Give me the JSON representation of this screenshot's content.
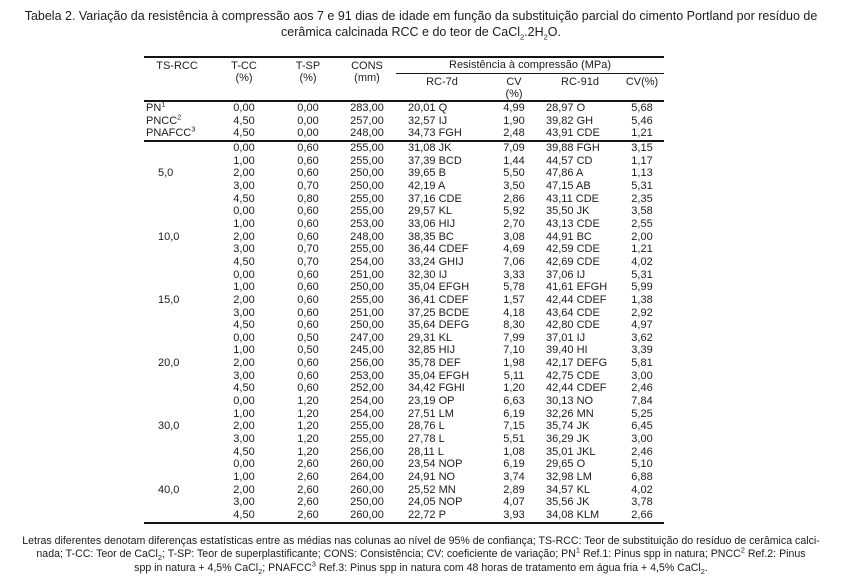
{
  "caption": {
    "segments": [
      {
        "t": "Tabela 2. Variação da resistência à compressão aos 7 e 91 dias de idade em função da substituição parcial do cimento Portland por resíduo de cerâmica calcinada RCC e do teor de CaCl"
      },
      {
        "t": "2",
        "s": "sub"
      },
      {
        "t": ".2H"
      },
      {
        "t": "2",
        "s": "sub"
      },
      {
        "t": "O."
      }
    ]
  },
  "table": {
    "header": {
      "ts_rcc": {
        "line1": "TS-RCC",
        "line2": ""
      },
      "t_cc": {
        "line1": "T-CC",
        "line2": "(%)"
      },
      "t_sp": {
        "line1": "T-SP",
        "line2": "(%)"
      },
      "cons": {
        "line1": "CONS",
        "line2": "(mm)"
      },
      "span": "Resistência à compressão (MPa)",
      "rc7d": {
        "line1": "RC-7d",
        "line2": ""
      },
      "cv7": {
        "line1": "CV",
        "line2": "(%)"
      },
      "rc91d": {
        "line1": "RC-91d",
        "line2": ""
      },
      "cv91": {
        "line1": "CV(%)",
        "line2": ""
      }
    },
    "reference_rows": [
      {
        "label_segments": [
          {
            "t": "PN"
          },
          {
            "t": "1",
            "s": "sup"
          }
        ],
        "cells": [
          "0,00",
          "0,00",
          "283,00",
          "20,01 Q",
          "4,99",
          "28,97 O",
          "5,68"
        ]
      },
      {
        "label_segments": [
          {
            "t": "PNCC"
          },
          {
            "t": "2",
            "s": "sup"
          }
        ],
        "cells": [
          "4,50",
          "0,00",
          "257,00",
          "32,57 IJ",
          "1,90",
          "39,82 GH",
          "5,46"
        ]
      },
      {
        "label_segments": [
          {
            "t": "PNAFCC"
          },
          {
            "t": "3",
            "s": "sup"
          }
        ],
        "cells": [
          "4,50",
          "0,00",
          "248,00",
          "34,73 FGH",
          "2,48",
          "43,91 CDE",
          "1,21"
        ]
      }
    ],
    "groups": [
      {
        "label": "5,0",
        "rows": [
          [
            "0,00",
            "0,60",
            "255,00",
            "31,08 JK",
            "7,09",
            "39,88 FGH",
            "3,15"
          ],
          [
            "1,00",
            "0,60",
            "255,00",
            "37,39 BCD",
            "1,44",
            "44,57 CD",
            "1,17"
          ],
          [
            "2,00",
            "0,60",
            "250,00",
            "39,65 B",
            "5,50",
            "47,86 A",
            "1,13"
          ],
          [
            "3,00",
            "0,70",
            "250,00",
            "42,19 A",
            "3,50",
            "47,15 AB",
            "5,31"
          ],
          [
            "4,50",
            "0,80",
            "255,00",
            "37,16 CDE",
            "2,86",
            "43,11 CDE",
            "2,35"
          ]
        ]
      },
      {
        "label": "10,0",
        "rows": [
          [
            "0,00",
            "0,60",
            "255,00",
            "29,57 KL",
            "5,92",
            "35,50 JK",
            "3,58"
          ],
          [
            "1,00",
            "0,60",
            "253,00",
            "33,06 HIJ",
            "2,70",
            "43,13 CDE",
            "2,55"
          ],
          [
            "2,00",
            "0,60",
            "248,00",
            "38,35 BC",
            "3,08",
            "44,91 BC",
            "2,00"
          ],
          [
            "3,00",
            "0,70",
            "255,00",
            "36,44 CDEF",
            "4,69",
            "42,59 CDE",
            "1,21"
          ],
          [
            "4,50",
            "0,70",
            "254,00",
            "33,24 GHIJ",
            "7,06",
            "42,69 CDE",
            "4,02"
          ]
        ]
      },
      {
        "label": "15,0",
        "rows": [
          [
            "0,00",
            "0,60",
            "251,00",
            "32,30 IJ",
            "3,33",
            "37,06 IJ",
            "5,31"
          ],
          [
            "1,00",
            "0,60",
            "250,00",
            "35,04 EFGH",
            "5,78",
            "41,61 EFGH",
            "5,99"
          ],
          [
            "2,00",
            "0,60",
            "255,00",
            "36,41 CDEF",
            "1,57",
            "42,44 CDEF",
            "1,38"
          ],
          [
            "3,00",
            "0,60",
            "251,00",
            "37,25 BCDE",
            "4,18",
            "43,64 CDE",
            "2,92"
          ],
          [
            "4,50",
            "0,60",
            "250,00",
            "35,64 DEFG",
            "8,30",
            "42,80 CDE",
            "4,97"
          ]
        ]
      },
      {
        "label": "20,0",
        "rows": [
          [
            "0,00",
            "0,50",
            "247,00",
            "29,31 KL",
            "7,99",
            "37,01 IJ",
            "3,62"
          ],
          [
            "1,00",
            "0,50",
            "245,00",
            "32,85 HIJ",
            "7,10",
            "39,40 HI",
            "3,39"
          ],
          [
            "2,00",
            "0,60",
            "256,00",
            "35,78 DEF",
            "1,98",
            "42,17 DEFG",
            "5,81"
          ],
          [
            "3,00",
            "0,60",
            "253,00",
            "35,04 EFGH",
            "5,11",
            "42,75 CDE",
            "3,00"
          ],
          [
            "4,50",
            "0,60",
            "252,00",
            "34,42 FGHI",
            "1,20",
            "42,44 CDEF",
            "2,46"
          ]
        ]
      },
      {
        "label": "30,0",
        "rows": [
          [
            "0,00",
            "1,20",
            "254,00",
            "23,19 OP",
            "6,63",
            "30,13 NO",
            "7,84"
          ],
          [
            "1,00",
            "1,20",
            "254,00",
            "27,51 LM",
            "6,19",
            "32,26 MN",
            "5,25"
          ],
          [
            "2,00",
            "1,20",
            "255,00",
            "28,76 L",
            "7,15",
            "35,74 JK",
            "6,45"
          ],
          [
            "3,00",
            "1,20",
            "255,00",
            "27,78 L",
            "5,51",
            "36,29 JK",
            "3,00"
          ],
          [
            "4,50",
            "1,20",
            "256,00",
            "28,11 L",
            "1,08",
            "35,01 JKL",
            "2,46"
          ]
        ]
      },
      {
        "label": "40,0",
        "rows": [
          [
            "0,00",
            "2,60",
            "260,00",
            "23,54 NOP",
            "6,19",
            "29,65 O",
            "5,10"
          ],
          [
            "1,00",
            "2,60",
            "264,00",
            "24,91 NO",
            "3,74",
            "32,98 LM",
            "6,88"
          ],
          [
            "2,00",
            "2,60",
            "260,00",
            "25,52 MN",
            "2,89",
            "34,57 KL",
            "4,02"
          ],
          [
            "3,00",
            "2,60",
            "250,00",
            "24,05 NOP",
            "4,07",
            "35,56 JK",
            "3,78"
          ],
          [
            "4,50",
            "2,60",
            "260,00",
            "22,72 P",
            "3,93",
            "34,08 KLM",
            "2,66"
          ]
        ]
      }
    ]
  },
  "footnote": {
    "lines": [
      {
        "segments": [
          {
            "t": "Letras diferentes denotam diferenças estatísticas entre as médias nas colunas ao nível de 95% de confiança; TS-RCC: Teor de substituição do resíduo de cerâmica calci-"
          }
        ]
      },
      {
        "segments": [
          {
            "t": "nada; T-CC: Teor de CaCl"
          },
          {
            "t": "2",
            "s": "sub"
          },
          {
            "t": "; T-SP: Teor de superplastificante; CONS: Consistência; CV: coeficiente de variação; PN"
          },
          {
            "t": "1",
            "s": "sup"
          },
          {
            "t": " Ref.1: Pinus spp in natura; PNCC"
          },
          {
            "t": "2",
            "s": "sup"
          },
          {
            "t": " Ref.2: Pinus"
          }
        ]
      },
      {
        "segments": [
          {
            "t": "spp in natura + 4,5% CaCl"
          },
          {
            "t": "2",
            "s": "sub"
          },
          {
            "t": ";  PNAFCC"
          },
          {
            "t": "3",
            "s": "sup"
          },
          {
            "t": " Ref.3: Pinus spp in natura com 48 horas de tratamento em água fria + 4,5% CaCl"
          },
          {
            "t": "2",
            "s": "sub"
          },
          {
            "t": "."
          }
        ]
      }
    ]
  }
}
